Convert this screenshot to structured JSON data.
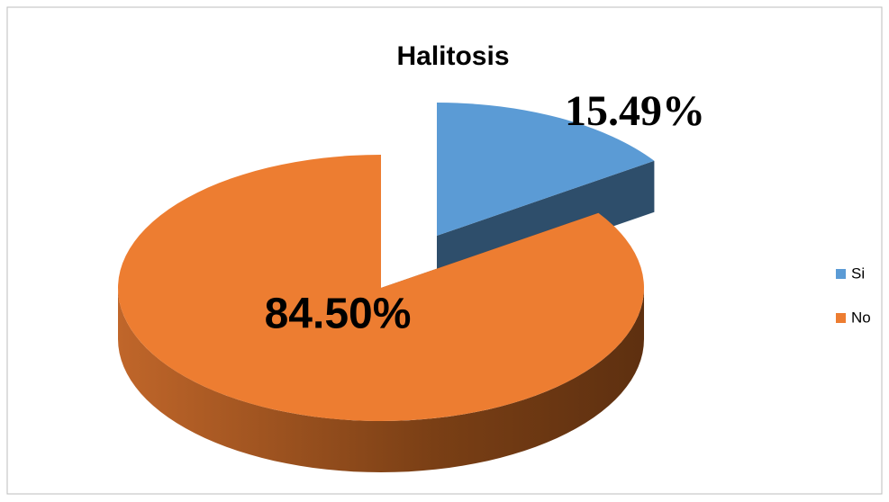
{
  "chart_data": {
    "type": "pie",
    "title": "Halitosis",
    "categories": [
      "Si",
      "No"
    ],
    "values": [
      15.49,
      84.5
    ],
    "value_labels": [
      "15.49%",
      "84.50%"
    ],
    "colors": [
      "#5b9bd5",
      "#ed7d31"
    ],
    "legend": "right"
  }
}
